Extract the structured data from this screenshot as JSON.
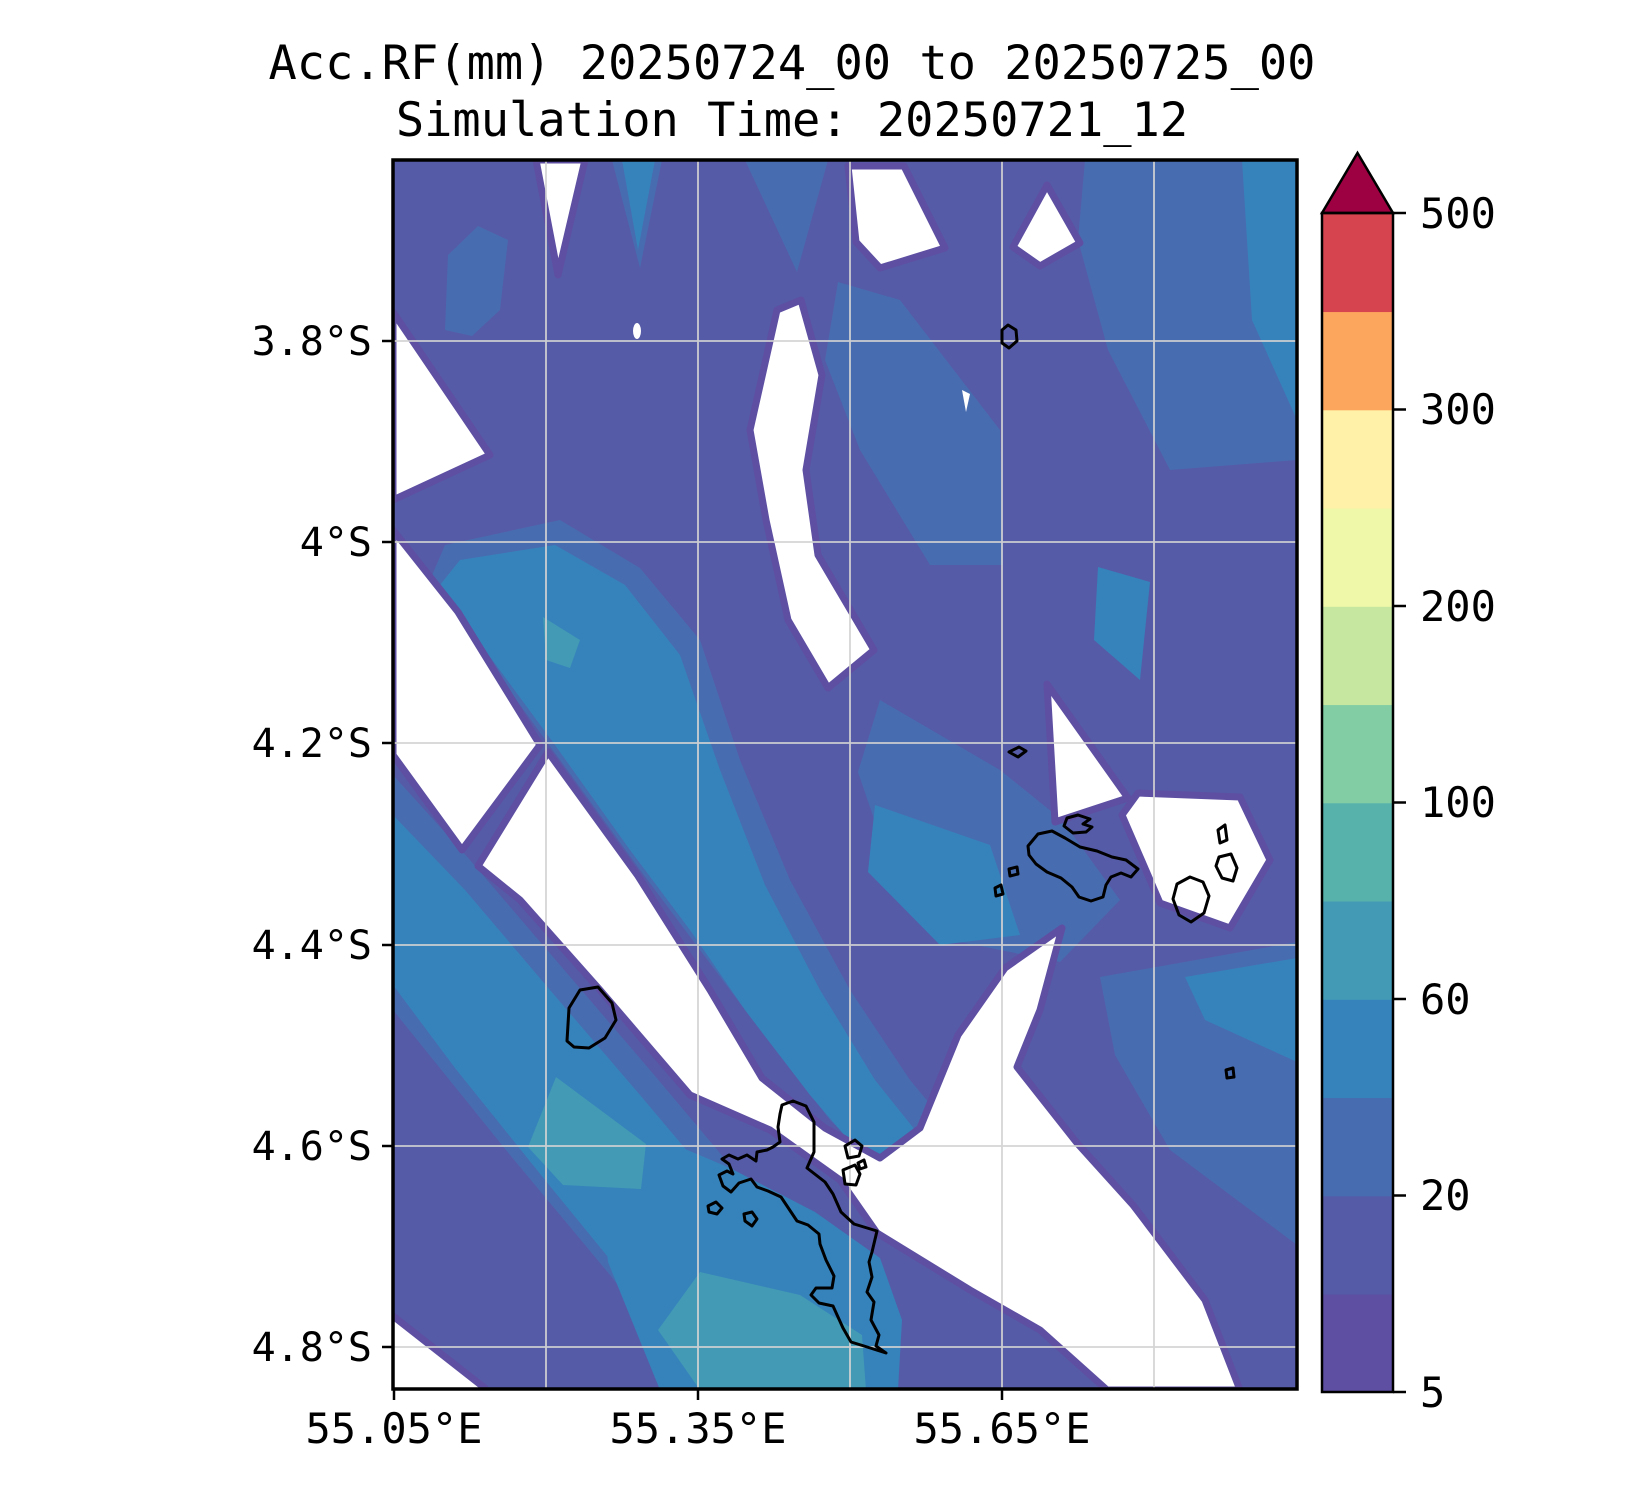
{
  "title": {
    "line1": "Acc.RF(mm) 20250724_00 to 20250725_00",
    "line2": "Simulation Time: 20250721_12"
  },
  "axes": {
    "x_ticks": [
      "55.05°E",
      "55.35°E",
      "55.65°E"
    ],
    "y_ticks": [
      "3.8°S",
      "4°S",
      "4.2°S",
      "4.4°S",
      "4.6°S",
      "4.8°S"
    ]
  },
  "colorbar": {
    "tick_labels": [
      "500",
      "300",
      "200",
      "100",
      "60",
      "20",
      "5"
    ],
    "levels": [
      5,
      10,
      20,
      40,
      60,
      80,
      100,
      150,
      200,
      250,
      300,
      400,
      500
    ],
    "colors_bottom_to_top": [
      "#5e4fa2",
      "#555ba7",
      "#486cb0",
      "#3683bb",
      "#429ab5",
      "#57b2ac",
      "#83cda5",
      "#c5e79f",
      "#eef8a8",
      "#fff1a7",
      "#fca55d",
      "#d6444f"
    ],
    "over_color": "#9e0142",
    "extend": "max"
  },
  "map": {
    "palette": {
      "lt5": "#ffffff",
      "r5_10": "#5e4fa2",
      "r10_20": "#555ba7",
      "r20_40": "#486cb0",
      "r40_60": "#3683bb",
      "r60_80": "#429ab5"
    },
    "gridline_color": "#d3d3d3",
    "coastline_color": "#000000",
    "islands": [
      "mahe",
      "praslin",
      "la-digue",
      "silhouette",
      "curieuse",
      "aride",
      "denis",
      "felicite",
      "ste-anne",
      "therese",
      "conception",
      "st-pierre"
    ]
  },
  "chart_data": {
    "type": "heatmap",
    "title": "Acc.RF(mm) 20250724_00 to 20250725_00",
    "subtitle": "Simulation Time: 20250721_12",
    "units": "mm",
    "xlabel_ticks": [
      "55.05°E",
      "55.35°E",
      "55.65°E"
    ],
    "ylabel_ticks": [
      "3.8°S",
      "4°S",
      "4.2°S",
      "4.4°S",
      "4.6°S",
      "4.8°S"
    ],
    "lon_range_deg_east": [
      55.05,
      55.94
    ],
    "lat_range_deg_south": [
      3.62,
      4.84
    ],
    "contour_levels_mm": [
      5,
      10,
      20,
      40,
      60,
      80,
      100,
      150,
      200,
      250,
      300,
      400,
      500
    ],
    "colorbar_tick_values": [
      5,
      20,
      60,
      100,
      200,
      300,
      500
    ],
    "field_summary": "Accumulated rainfall mostly 5-40 mm across the domain; two NW-SE oriented bands of 40-60 mm with small 60-80 mm cores cross the center-left and southwest; values below 5 mm (white) in a central diagonal corridor, the mid-left, and southeast of Mahe; no areas above 80 mm observed.",
    "max_bin_observed_mm": [
      60,
      80
    ],
    "legend_position": "right colorbar, vertical, triangular over-arrow at top"
  }
}
